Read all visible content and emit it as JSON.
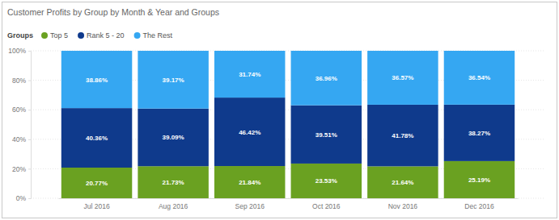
{
  "chart_data": {
    "type": "bar",
    "title": "Customer Profits by Group by Month & Year and Groups",
    "legend_title": "Groups",
    "categories": [
      "Jul 2016",
      "Aug 2016",
      "Sep 2016",
      "Oct 2016",
      "Nov 2016",
      "Dec 2016"
    ],
    "series": [
      {
        "name": "Top 5",
        "color": "#6aa121",
        "values": [
          20.77,
          21.73,
          21.84,
          23.53,
          21.64,
          25.19
        ],
        "value_labels": [
          "20.77%",
          "21.73%",
          "21.84%",
          "23.53%",
          "21.64%",
          "25.19%"
        ]
      },
      {
        "name": "Rank 5 - 20",
        "color": "#0f3a8c",
        "values": [
          40.36,
          39.09,
          46.42,
          39.51,
          41.78,
          38.27
        ],
        "value_labels": [
          "40.36%",
          "39.09%",
          "46.42%",
          "39.51%",
          "41.78%",
          "38.27%"
        ]
      },
      {
        "name": "The Rest",
        "color": "#35a7f2",
        "values": [
          38.86,
          39.17,
          31.74,
          36.96,
          36.57,
          36.54
        ],
        "value_labels": [
          "38.86%",
          "39.17%",
          "31.74%",
          "36.96%",
          "36.57%",
          "36.54%"
        ]
      }
    ],
    "ylim": [
      0,
      100
    ],
    "yticks": [
      {
        "value": 0,
        "label": "0%"
      },
      {
        "value": 20,
        "label": "20%"
      },
      {
        "value": 40,
        "label": "40%"
      },
      {
        "value": 60,
        "label": "60%"
      },
      {
        "value": 80,
        "label": "80%"
      },
      {
        "value": 100,
        "label": "100%"
      }
    ],
    "grid": true,
    "stacked": true,
    "data_labels": true,
    "legend": "top"
  }
}
